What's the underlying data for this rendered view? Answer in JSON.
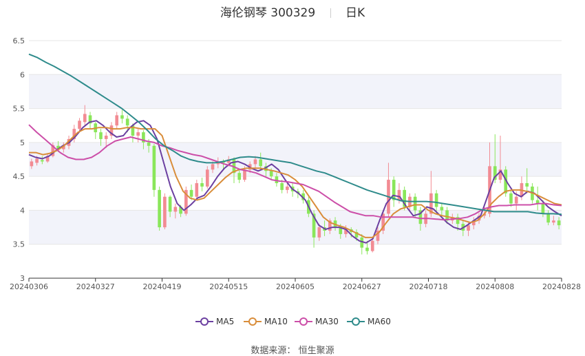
{
  "header": {
    "stock_name": "海伦钢琴",
    "stock_code": "300329",
    "period": "日K"
  },
  "source_label": "数据来源：",
  "source_value": "恒生聚源",
  "colors": {
    "up": "#f28b93",
    "down": "#8ae65a",
    "MA5": "#6b3fa0",
    "MA10": "#d98d3a",
    "MA30": "#cc4ea8",
    "MA60": "#2e8b8b"
  },
  "chart_data": {
    "type": "candlestick",
    "ylim": [
      3,
      6.5
    ],
    "yticks": [
      "3",
      "3.5",
      "4",
      "4.5",
      "5",
      "5.5",
      "6",
      "6.5"
    ],
    "xtick_labels": [
      "20240306",
      "20240327",
      "20240419",
      "20240515",
      "20240605",
      "20240627",
      "20240718",
      "20240808",
      "20240828"
    ],
    "legend": [
      "MA5",
      "MA10",
      "MA30",
      "MA60"
    ],
    "candles": [
      [
        4.65,
        4.72,
        4.76,
        4.61
      ],
      [
        4.7,
        4.76,
        4.8,
        4.66
      ],
      [
        4.74,
        4.72,
        4.8,
        4.68
      ],
      [
        4.72,
        4.8,
        4.84,
        4.7
      ],
      [
        4.8,
        4.96,
        5.0,
        4.78
      ],
      [
        4.95,
        4.9,
        5.02,
        4.86
      ],
      [
        4.9,
        4.95,
        5.0,
        4.85
      ],
      [
        4.95,
        5.05,
        5.1,
        4.9
      ],
      [
        5.05,
        5.2,
        5.26,
        5.0
      ],
      [
        5.2,
        5.32,
        5.36,
        5.15
      ],
      [
        5.3,
        5.42,
        5.55,
        5.25
      ],
      [
        5.4,
        5.28,
        5.45,
        5.2
      ],
      [
        5.28,
        5.15,
        5.3,
        5.05
      ],
      [
        5.15,
        5.05,
        5.2,
        4.95
      ],
      [
        5.05,
        5.1,
        5.15,
        4.92
      ],
      [
        5.1,
        5.25,
        5.3,
        5.05
      ],
      [
        5.25,
        5.4,
        5.45,
        5.2
      ],
      [
        5.4,
        5.35,
        5.48,
        5.28
      ],
      [
        5.35,
        5.25,
        5.4,
        5.15
      ],
      [
        5.25,
        5.1,
        5.28,
        5.0
      ],
      [
        5.1,
        5.15,
        5.2,
        5.0
      ],
      [
        5.15,
        5.0,
        5.18,
        4.9
      ],
      [
        5.0,
        4.95,
        5.05,
        4.85
      ],
      [
        4.95,
        4.3,
        4.98,
        4.2
      ],
      [
        4.3,
        3.75,
        4.35,
        3.7
      ],
      [
        3.75,
        4.2,
        4.25,
        3.72
      ],
      [
        4.2,
        3.98,
        4.22,
        3.9
      ],
      [
        3.98,
        4.05,
        4.1,
        3.88
      ],
      [
        4.05,
        3.95,
        4.08,
        3.9
      ],
      [
        3.95,
        4.3,
        4.35,
        3.92
      ],
      [
        4.3,
        4.2,
        4.38,
        4.15
      ],
      [
        4.2,
        4.4,
        4.45,
        4.18
      ],
      [
        4.4,
        4.35,
        4.48,
        4.28
      ],
      [
        4.35,
        4.6,
        4.65,
        4.32
      ],
      [
        4.6,
        4.68,
        4.72,
        4.55
      ],
      [
        4.68,
        4.72,
        4.78,
        4.62
      ],
      [
        4.72,
        4.7,
        4.75,
        4.6
      ],
      [
        4.7,
        4.75,
        4.8,
        4.65
      ],
      [
        4.75,
        4.55,
        4.78,
        4.4
      ],
      [
        4.55,
        4.45,
        4.6,
        4.4
      ],
      [
        4.45,
        4.6,
        4.65,
        4.42
      ],
      [
        4.6,
        4.68,
        4.72,
        4.55
      ],
      [
        4.68,
        4.75,
        4.8,
        4.62
      ],
      [
        4.75,
        4.65,
        4.85,
        4.6
      ],
      [
        4.65,
        4.58,
        4.7,
        4.5
      ],
      [
        4.58,
        4.5,
        4.62,
        4.45
      ],
      [
        4.5,
        4.4,
        4.55,
        4.35
      ],
      [
        4.4,
        4.3,
        4.45,
        4.25
      ],
      [
        4.3,
        4.35,
        4.4,
        4.25
      ],
      [
        4.35,
        4.28,
        4.4,
        4.2
      ],
      [
        4.28,
        4.25,
        4.32,
        4.18
      ],
      [
        4.25,
        4.15,
        4.3,
        4.1
      ],
      [
        4.15,
        3.95,
        4.2,
        3.9
      ],
      [
        3.95,
        3.6,
        4.0,
        3.45
      ],
      [
        3.6,
        3.75,
        3.8,
        3.55
      ],
      [
        3.75,
        3.7,
        3.85,
        3.62
      ],
      [
        3.7,
        3.85,
        3.88,
        3.65
      ],
      [
        3.85,
        3.75,
        3.9,
        3.7
      ],
      [
        3.75,
        3.65,
        3.8,
        3.58
      ],
      [
        3.65,
        3.72,
        3.78,
        3.6
      ],
      [
        3.72,
        3.68,
        3.75,
        3.6
      ],
      [
        3.68,
        3.6,
        3.72,
        3.55
      ],
      [
        3.6,
        3.45,
        3.65,
        3.35
      ],
      [
        3.45,
        3.4,
        3.55,
        3.35
      ],
      [
        3.4,
        3.55,
        3.6,
        3.38
      ],
      [
        3.55,
        3.7,
        3.75,
        3.5
      ],
      [
        3.7,
        3.95,
        4.0,
        3.65
      ],
      [
        3.95,
        4.45,
        4.7,
        3.9
      ],
      [
        4.45,
        4.15,
        4.5,
        4.05
      ],
      [
        4.15,
        4.3,
        4.4,
        4.1
      ],
      [
        4.3,
        4.05,
        4.35,
        4.0
      ],
      [
        4.05,
        4.2,
        4.25,
        4.0
      ],
      [
        4.2,
        4.0,
        4.25,
        3.9
      ],
      [
        4.0,
        3.8,
        4.05,
        3.7
      ],
      [
        3.8,
        3.95,
        4.0,
        3.75
      ],
      [
        3.95,
        4.25,
        4.58,
        3.9
      ],
      [
        4.25,
        4.05,
        4.3,
        3.95
      ],
      [
        4.05,
        4.0,
        4.1,
        3.9
      ],
      [
        4.0,
        3.85,
        4.05,
        3.8
      ],
      [
        3.85,
        3.9,
        3.95,
        3.8
      ],
      [
        3.9,
        3.8,
        3.95,
        3.7
      ],
      [
        3.8,
        3.7,
        3.85,
        3.62
      ],
      [
        3.7,
        3.78,
        3.82,
        3.62
      ],
      [
        3.78,
        3.85,
        3.9,
        3.72
      ],
      [
        3.85,
        3.92,
        3.96,
        3.8
      ],
      [
        3.92,
        3.95,
        4.05,
        3.88
      ],
      [
        3.95,
        4.65,
        5.0,
        3.9
      ],
      [
        4.65,
        4.45,
        5.12,
        4.4
      ],
      [
        4.45,
        4.6,
        5.1,
        4.4
      ],
      [
        4.6,
        4.25,
        4.65,
        4.2
      ],
      [
        4.25,
        4.1,
        4.3,
        4.05
      ],
      [
        4.1,
        4.2,
        4.28,
        4.0
      ],
      [
        4.2,
        4.4,
        4.5,
        4.15
      ],
      [
        4.4,
        4.35,
        4.62,
        4.25
      ],
      [
        4.35,
        4.15,
        4.4,
        4.1
      ],
      [
        4.15,
        4.1,
        4.35,
        4.0
      ],
      [
        4.1,
        3.95,
        4.15,
        3.9
      ],
      [
        3.95,
        3.82,
        4.0,
        3.78
      ],
      [
        3.82,
        3.85,
        3.92,
        3.78
      ],
      [
        3.85,
        3.78,
        3.9,
        3.72
      ]
    ],
    "series": [
      {
        "name": "MA5",
        "values": [
          4.82,
          4.78,
          4.76,
          4.8,
          4.88,
          4.95,
          5.0,
          5.1,
          5.22,
          5.3,
          5.32,
          5.25,
          5.15,
          5.08,
          5.1,
          5.22,
          5.3,
          5.32,
          5.25,
          5.05,
          4.7,
          4.35,
          4.1,
          4.0,
          4.08,
          4.18,
          4.22,
          4.35,
          4.5,
          4.62,
          4.7,
          4.72,
          4.68,
          4.62,
          4.58,
          4.62,
          4.68,
          4.6,
          4.45,
          4.32,
          4.25,
          4.15,
          3.95,
          3.78,
          3.72,
          3.75,
          3.75,
          3.72,
          3.62,
          3.55,
          3.52,
          3.58,
          3.85,
          4.1,
          4.22,
          4.2,
          4.05,
          3.92,
          3.95,
          4.05,
          4.02,
          3.92,
          3.82,
          3.75,
          3.72,
          3.78,
          3.85,
          3.92,
          4.2,
          4.48,
          4.58,
          4.4,
          4.25,
          4.2,
          4.28,
          4.25,
          4.15,
          4.05,
          3.98,
          3.92
        ]
      },
      {
        "name": "MA10",
        "values": [
          4.85,
          4.85,
          4.82,
          4.84,
          4.88,
          4.95,
          5.05,
          5.15,
          5.2,
          5.2,
          5.22,
          5.22,
          5.2,
          5.2,
          5.22,
          5.22,
          5.2,
          5.2,
          5.2,
          5.1,
          4.8,
          4.5,
          4.28,
          4.18,
          4.15,
          4.18,
          4.28,
          4.38,
          4.48,
          4.56,
          4.6,
          4.62,
          4.62,
          4.62,
          4.6,
          4.58,
          4.55,
          4.52,
          4.45,
          4.35,
          4.2,
          4.05,
          3.9,
          3.82,
          3.78,
          3.75,
          3.7,
          3.65,
          3.6,
          3.6,
          3.68,
          3.82,
          3.95,
          4.02,
          4.05,
          4.08,
          4.08,
          4.0,
          3.95,
          3.92,
          3.9,
          3.88,
          3.85,
          3.82,
          3.85,
          3.95,
          4.1,
          4.2,
          4.28,
          4.3,
          4.3,
          4.28,
          4.25,
          4.2,
          4.15,
          4.1,
          4.08
        ]
      },
      {
        "name": "MA30",
        "values": [
          5.26,
          5.15,
          5.05,
          4.95,
          4.85,
          4.78,
          4.75,
          4.75,
          4.78,
          4.85,
          4.95,
          5.02,
          5.05,
          5.08,
          5.05,
          5.02,
          5.0,
          4.95,
          4.92,
          4.88,
          4.85,
          4.82,
          4.8,
          4.76,
          4.72,
          4.68,
          4.65,
          4.6,
          4.58,
          4.55,
          4.5,
          4.45,
          4.43,
          4.42,
          4.4,
          4.38,
          4.33,
          4.28,
          4.2,
          4.12,
          4.05,
          3.98,
          3.95,
          3.92,
          3.92,
          3.9,
          3.9,
          3.9,
          3.9,
          3.9,
          3.88,
          3.88,
          3.87,
          3.86,
          3.87,
          3.88,
          3.9,
          3.95,
          4.02,
          4.05,
          4.07,
          4.07,
          4.08,
          4.08,
          4.08,
          4.1,
          4.1,
          4.08,
          4.07
        ]
      },
      {
        "name": "MA60",
        "values": [
          6.3,
          6.25,
          6.18,
          6.12,
          6.05,
          5.98,
          5.9,
          5.82,
          5.74,
          5.66,
          5.58,
          5.5,
          5.4,
          5.3,
          5.18,
          5.05,
          4.95,
          4.88,
          4.8,
          4.75,
          4.72,
          4.7,
          4.7,
          4.72,
          4.75,
          4.78,
          4.79,
          4.78,
          4.76,
          4.74,
          4.72,
          4.7,
          4.66,
          4.62,
          4.58,
          4.55,
          4.5,
          4.45,
          4.4,
          4.35,
          4.3,
          4.26,
          4.22,
          4.18,
          4.14,
          4.13,
          4.13,
          4.13,
          4.12,
          4.1,
          4.08,
          4.06,
          4.04,
          4.02,
          4.0,
          3.98,
          3.98,
          3.98,
          3.98,
          3.98,
          3.96,
          3.95,
          3.95,
          3.94
        ]
      }
    ]
  }
}
